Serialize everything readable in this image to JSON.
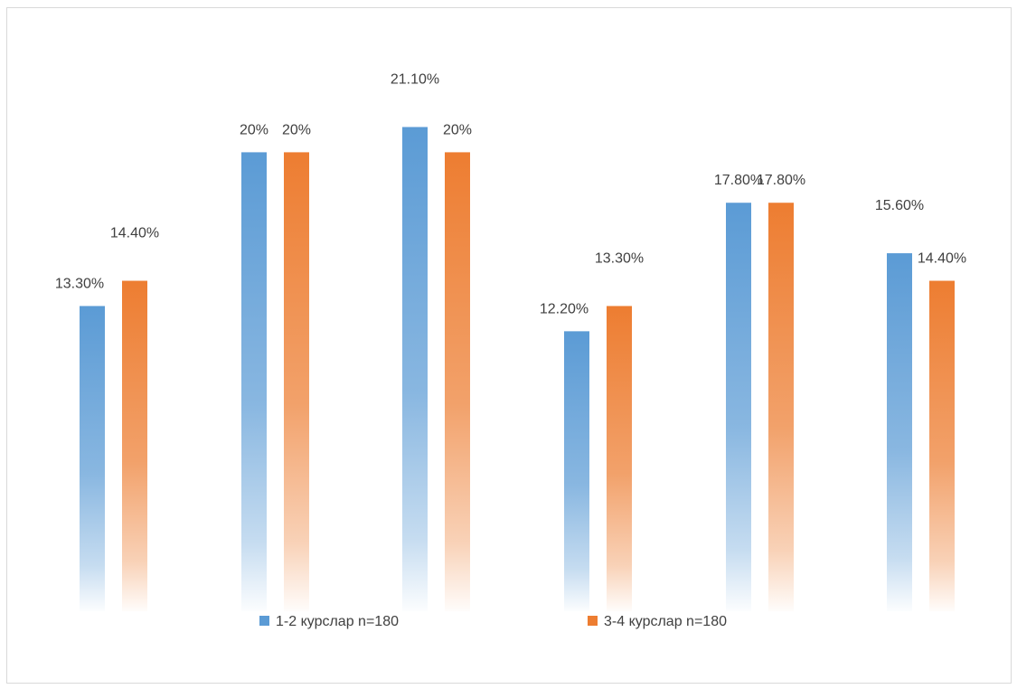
{
  "chart_data": {
    "type": "bar",
    "categories": [
      "",
      "",
      "",
      "",
      "",
      ""
    ],
    "ylim": [
      0,
      0.25
    ],
    "grid": false,
    "legend_position": "bottom",
    "series": [
      {
        "name": "1-2 курслар n=180",
        "color": "#5b9bd5",
        "values": [
          0.133,
          0.2,
          0.211,
          0.122,
          0.178,
          0.156
        ],
        "labels": [
          "13.30%",
          "20%",
          "21.10%",
          "12.20%",
          "17.80%",
          "15.60%"
        ]
      },
      {
        "name": "3-4 курслар n=180",
        "color": "#ed7d31",
        "values": [
          0.144,
          0.2,
          0.2,
          0.133,
          0.178,
          0.144
        ],
        "labels": [
          "14.40%",
          "20%",
          "20%",
          "13.30%",
          "17.80%",
          "14.40%"
        ]
      }
    ]
  }
}
